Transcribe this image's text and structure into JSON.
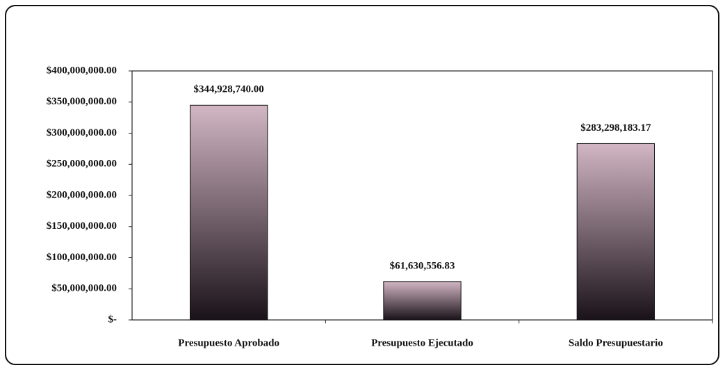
{
  "chart_data": {
    "type": "bar",
    "categories": [
      "Presupuesto Aprobado",
      "Presupuesto Ejecutado",
      "Saldo Presupuestario"
    ],
    "values": [
      344928740,
      61630556.83,
      283298183.17
    ],
    "value_labels": [
      "$344,928,740.00",
      "$61,630,556.83",
      "$283,298,183.17"
    ],
    "color": "#d2b6c4",
    "ylim": [
      0,
      400000000
    ],
    "yticks": [
      {
        "value": 0,
        "label": "$-"
      },
      {
        "value": 50000000,
        "label": "$50,000,000.00"
      },
      {
        "value": 100000000,
        "label": "$100,000,000.00"
      },
      {
        "value": 150000000,
        "label": "$150,000,000.00"
      },
      {
        "value": 200000000,
        "label": "$200,000,000.00"
      },
      {
        "value": 250000000,
        "label": "$250,000,000.00"
      },
      {
        "value": 300000000,
        "label": "$300,000,000.00"
      },
      {
        "value": 350000000,
        "label": "$350,000,000.00"
      },
      {
        "value": 400000000,
        "label": "$400,000,000.00"
      }
    ],
    "grid": false
  }
}
